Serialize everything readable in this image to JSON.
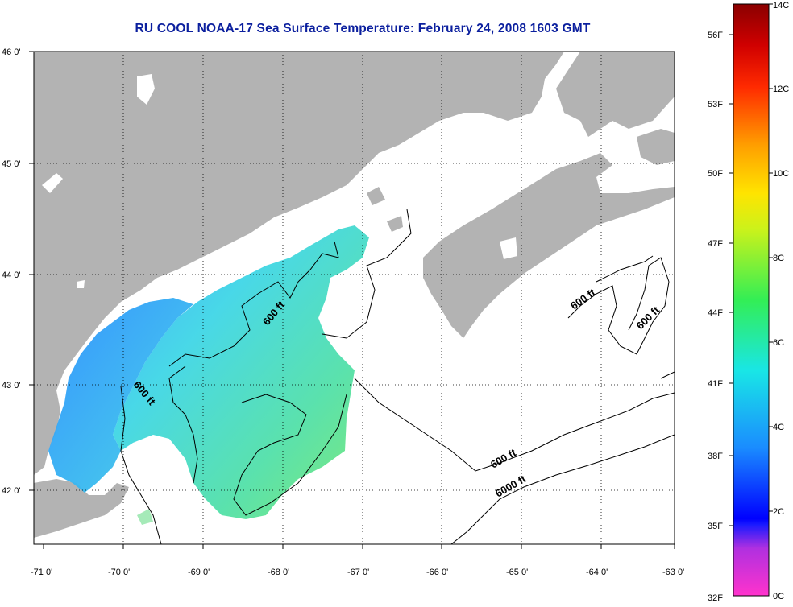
{
  "title": "RU COOL  NOAA-17  Sea Surface Temperature:  February 24, 2008 1603 GMT",
  "lat_labels": [
    "46 0'",
    "45 0'",
    "44 0'",
    "43 0'",
    "42 0'"
  ],
  "lon_labels": [
    "-71 0'",
    "-70 0'",
    "-69 0'",
    "-68 0'",
    "-67 0'",
    "-66 0'",
    "-65 0'",
    "-64 0'",
    "-63 0'"
  ],
  "contour_labels": [
    "600 ft",
    "600 ft",
    "600 ft",
    "600 ft",
    "6000 ft"
  ],
  "colorbar": {
    "fahrenheit": [
      "56F",
      "53F",
      "50F",
      "47F",
      "44F",
      "41F",
      "38F",
      "35F",
      "32F"
    ],
    "celsius": [
      "14C",
      "12C",
      "10C",
      "8C",
      "6C",
      "4C",
      "2C",
      "0C"
    ]
  },
  "colors": {
    "land": "#b3b3b3",
    "ocean_nodata": "#ffffff",
    "title": "#0b1f9e"
  }
}
